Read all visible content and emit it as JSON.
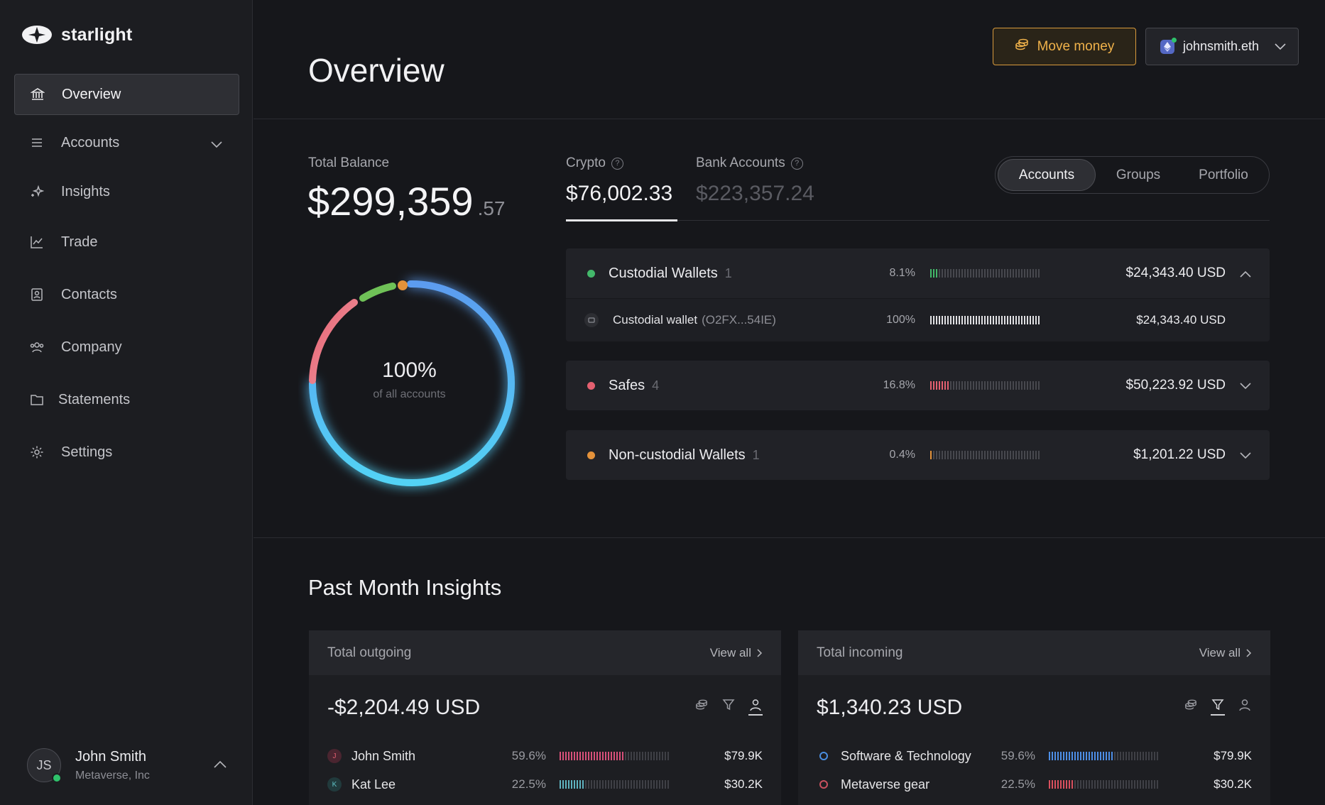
{
  "app": {
    "name": "starlight"
  },
  "sidebar": {
    "items": [
      {
        "label": "Overview"
      },
      {
        "label": "Accounts"
      },
      {
        "label": "Insights"
      },
      {
        "label": "Trade"
      },
      {
        "label": "Contacts"
      },
      {
        "label": "Company"
      },
      {
        "label": "Statements"
      },
      {
        "label": "Settings"
      }
    ]
  },
  "user": {
    "initials": "JS",
    "name": "John Smith",
    "org": "Metaverse, Inc"
  },
  "header": {
    "title": "Overview",
    "move_money": "Move money",
    "wallet": "johnsmith.eth"
  },
  "balance": {
    "label": "Total Balance",
    "main": "$299,359",
    "cents": ".57",
    "crypto_label": "Crypto",
    "crypto_value": "$76,002.33",
    "bank_label": "Bank Accounts",
    "bank_value": "$223,357.24"
  },
  "view_tabs": [
    "Accounts",
    "Groups",
    "Portfolio"
  ],
  "donut": {
    "percent": "100%",
    "caption": "of all accounts"
  },
  "accounts": [
    {
      "name": "Custodial Wallets",
      "count": "1",
      "pct": "8.1%",
      "fill": 0.081,
      "amount": "$24,343.40 USD",
      "color": "#43b86a",
      "sub": {
        "name": "Custodial wallet",
        "addr": "(O2FX...54IE)",
        "pct": "100%",
        "fill": 1.0,
        "amount": "$24,343.40 USD"
      }
    },
    {
      "name": "Safes",
      "count": "4",
      "pct": "16.8%",
      "fill": 0.168,
      "amount": "$50,223.92 USD",
      "color": "#e46070"
    },
    {
      "name": "Non-custodial Wallets",
      "count": "1",
      "pct": "0.4%",
      "fill": 0.004,
      "amount": "$1,201.22 USD",
      "color": "#e4923a"
    }
  ],
  "insights": {
    "title": "Past Month Insights",
    "view_all": "View all",
    "outgoing": {
      "title": "Total outgoing",
      "amount": "-$2,204.49 USD",
      "rows": [
        {
          "initial": "J",
          "name": "John Smith",
          "pct": "59.6%",
          "fill": 0.596,
          "amount": "$79.9K"
        },
        {
          "initial": "K",
          "name": "Kat Lee",
          "pct": "22.5%",
          "fill": 0.225,
          "amount": "$30.2K"
        }
      ]
    },
    "incoming": {
      "title": "Total incoming",
      "amount": "$1,340.23 USD",
      "rows": [
        {
          "name": "Software & Technology",
          "pct": "59.6%",
          "fill": 0.596,
          "amount": "$79.9K"
        },
        {
          "name": "Metaverse gear",
          "pct": "22.5%",
          "fill": 0.225,
          "amount": "$30.2K"
        }
      ]
    }
  }
}
